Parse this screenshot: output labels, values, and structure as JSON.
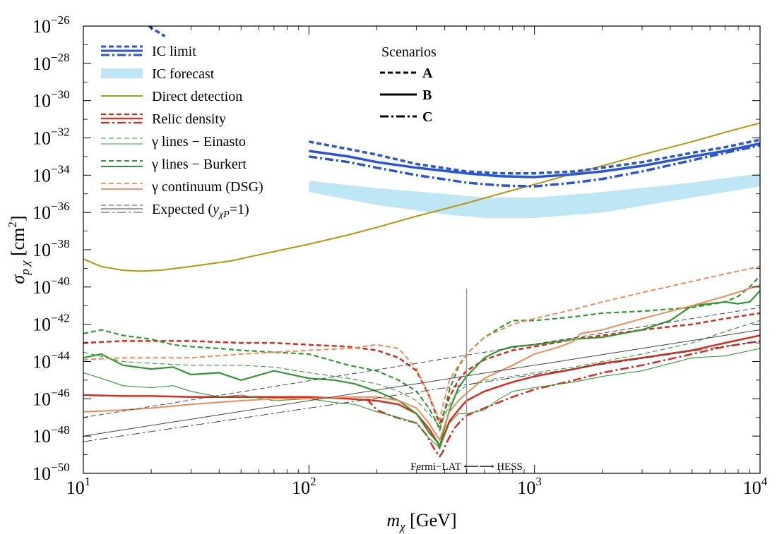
{
  "chart_data": {
    "type": "line",
    "xscale": "log",
    "yscale": "log",
    "xlim": [
      10,
      10000
    ],
    "ylim_exp": [
      -50,
      -26
    ],
    "xlabel": {
      "var": "m",
      "sub": "χ",
      "unit": "[GeV]"
    },
    "ylabel": {
      "var": "σ",
      "sub": "p χ",
      "unit": "[cm",
      "unit_sup": "2",
      "unit_close": "]"
    },
    "x_ticks": [
      {
        "value": 10,
        "base": "10",
        "exp": "1"
      },
      {
        "value": 100,
        "base": "10",
        "exp": "2"
      },
      {
        "value": 1000,
        "base": "10",
        "exp": "3"
      },
      {
        "value": 10000,
        "base": "10",
        "exp": "4"
      }
    ],
    "y_ticks": [
      {
        "exp_value": -26,
        "base": "10",
        "exp": "−26"
      },
      {
        "exp_value": -28,
        "base": "10",
        "exp": "−28"
      },
      {
        "exp_value": -30,
        "base": "10",
        "exp": "−30"
      },
      {
        "exp_value": -32,
        "base": "10",
        "exp": "−32"
      },
      {
        "exp_value": -34,
        "base": "10",
        "exp": "−34"
      },
      {
        "exp_value": -36,
        "base": "10",
        "exp": "−36"
      },
      {
        "exp_value": -38,
        "base": "10",
        "exp": "−38"
      },
      {
        "exp_value": -40,
        "base": "10",
        "exp": "−40"
      },
      {
        "exp_value": -42,
        "base": "10",
        "exp": "−42"
      },
      {
        "exp_value": -44,
        "base": "10",
        "exp": "−44"
      },
      {
        "exp_value": -46,
        "base": "10",
        "exp": "−46"
      },
      {
        "exp_value": -48,
        "base": "10",
        "exp": "−48"
      },
      {
        "exp_value": -50,
        "base": "10",
        "exp": "−50"
      }
    ],
    "annotation": {
      "text": "Fermi−LAT ⟵⟶ HESS",
      "x": 500
    },
    "colors": {
      "ic": "#2955d6",
      "ic_band": "#bfe6f5",
      "direct": "#b8960c",
      "relic": "#d92c1f",
      "green": "#2f9a31",
      "orange": "#f08a55",
      "gray": "#444444"
    },
    "legend": {
      "entries": [
        {
          "id": "ic-limit",
          "label": "IC limit"
        },
        {
          "id": "ic-forecast",
          "label": "IC forecast"
        },
        {
          "id": "direct",
          "label": "Direct detection"
        },
        {
          "id": "relic",
          "label": "Relic density"
        },
        {
          "id": "einasto",
          "label": "γ lines − Einasto"
        },
        {
          "id": "burkert",
          "label": "γ lines − Burkert"
        },
        {
          "id": "dsg",
          "label": "γ continuum (DSG)"
        },
        {
          "id": "expected",
          "label": "Expected (",
          "sub_var": "y",
          "sub_sub": "χP",
          "tail": "=1)"
        }
      ]
    },
    "scenarios": {
      "title": "Scenarios",
      "items": [
        {
          "label": "A",
          "style": "dashed"
        },
        {
          "label": "B",
          "style": "solid"
        },
        {
          "label": "C",
          "style": "dashdot"
        }
      ]
    },
    "ic_band": {
      "name": "IC forecast",
      "x": [
        100,
        200,
        400,
        600,
        1000,
        2000,
        5000,
        10000
      ],
      "upper": [
        -34.3,
        -34.7,
        -35.0,
        -35.2,
        -35.2,
        -34.9,
        -34.4,
        -33.9
      ],
      "lower": [
        -34.9,
        -35.6,
        -36.1,
        -36.3,
        -36.3,
        -36.0,
        -35.2,
        -34.6
      ]
    },
    "series": [
      {
        "name": "Direct detection",
        "color": "direct",
        "style": "solid",
        "width": 2,
        "x": [
          10,
          12,
          15,
          18,
          22,
          30,
          45,
          70,
          100,
          150,
          200,
          300,
          500,
          700,
          1000,
          1500,
          2000,
          3000,
          5000,
          7000,
          10000
        ],
        "y": [
          -38.5,
          -38.9,
          -39.1,
          -39.15,
          -39.1,
          -38.9,
          -38.6,
          -38.1,
          -37.7,
          -37.2,
          -36.8,
          -36.2,
          -35.5,
          -35.0,
          -34.5,
          -33.9,
          -33.5,
          -32.9,
          -32.2,
          -31.7,
          -31.2
        ]
      },
      {
        "name": "IC limit A",
        "color": "ic",
        "style": "dashed",
        "width": 3.5,
        "x": [
          100,
          150,
          200,
          300,
          500,
          700,
          1000,
          1500,
          2000,
          3000,
          5000,
          7000,
          10000
        ],
        "y": [
          -32.2,
          -32.6,
          -32.9,
          -33.4,
          -33.8,
          -33.9,
          -33.9,
          -33.8,
          -33.6,
          -33.3,
          -32.8,
          -32.5,
          -32.1
        ]
      },
      {
        "name": "IC limit B",
        "color": "ic",
        "style": "solid",
        "width": 3.5,
        "x": [
          100,
          150,
          200,
          300,
          500,
          700,
          1000,
          1500,
          2000,
          3000,
          5000,
          7000,
          10000
        ],
        "y": [
          -32.7,
          -33.0,
          -33.3,
          -33.6,
          -33.9,
          -34.05,
          -34.1,
          -33.95,
          -33.8,
          -33.5,
          -33.0,
          -32.7,
          -32.3
        ]
      },
      {
        "name": "IC limit C",
        "color": "ic",
        "style": "dashdot",
        "width": 3.5,
        "x": [
          100,
          150,
          200,
          300,
          500,
          700,
          1000,
          1500,
          2000,
          3000,
          5000,
          7000,
          10000
        ],
        "y": [
          -33.0,
          -33.3,
          -33.6,
          -34.0,
          -34.4,
          -34.55,
          -34.6,
          -34.4,
          -34.2,
          -33.8,
          -33.2,
          -32.8,
          -32.4
        ]
      },
      {
        "name": "IC limit low-mass",
        "color": "ic",
        "style": "dashed",
        "width": 3.5,
        "x": [
          19.5,
          23
        ],
        "y": [
          -26.0,
          -26.55
        ]
      },
      {
        "name": "Relic A",
        "color": "relic",
        "style": "dashed",
        "width": 2.5,
        "x": [
          10,
          15,
          20,
          30,
          50,
          70,
          100,
          150,
          200,
          250,
          300,
          340,
          370,
          380,
          390,
          420,
          460,
          500,
          600,
          800,
          1000,
          1500,
          2000,
          3000,
          5000,
          7000,
          10000
        ],
        "y": [
          -43.0,
          -42.9,
          -42.9,
          -42.9,
          -43.0,
          -43.0,
          -43.1,
          -43.2,
          -43.4,
          -43.8,
          -44.5,
          -45.8,
          -47.0,
          -47.3,
          -47.0,
          -45.9,
          -45.0,
          -44.5,
          -43.9,
          -43.4,
          -43.2,
          -42.8,
          -42.6,
          -42.3,
          -42.0,
          -41.7,
          -41.4
        ]
      },
      {
        "name": "Relic B",
        "color": "relic",
        "style": "solid",
        "width": 2.5,
        "x": [
          10,
          15,
          20,
          30,
          50,
          70,
          100,
          150,
          200,
          250,
          300,
          340,
          370,
          380,
          390,
          420,
          460,
          500,
          600,
          800,
          1000,
          1500,
          2000,
          3000,
          5000,
          7000,
          10000
        ],
        "y": [
          -45.8,
          -45.85,
          -45.85,
          -45.9,
          -45.9,
          -45.9,
          -45.9,
          -46.0,
          -46.1,
          -46.3,
          -46.8,
          -47.6,
          -48.3,
          -48.5,
          -48.2,
          -47.2,
          -46.6,
          -46.1,
          -45.6,
          -45.1,
          -44.8,
          -44.4,
          -44.1,
          -43.8,
          -43.4,
          -43.0,
          -42.6
        ]
      },
      {
        "name": "Relic C",
        "color": "relic",
        "style": "dashdot",
        "width": 2.5,
        "x": [
          180,
          200,
          230,
          260,
          300,
          330,
          360,
          375,
          380,
          390,
          410,
          440,
          470,
          500,
          600,
          800,
          1000,
          1500,
          2000,
          3000,
          5000,
          7000,
          10000
        ],
        "y": [
          -46.0,
          -46.6,
          -46.9,
          -47.1,
          -47.3,
          -47.9,
          -48.7,
          -49.0,
          -49.1,
          -48.9,
          -48.3,
          -47.6,
          -47.2,
          -46.9,
          -46.5,
          -45.9,
          -45.5,
          -45.0,
          -44.6,
          -44.2,
          -43.6,
          -43.2,
          -42.9
        ]
      },
      {
        "name": "Burkert A",
        "color": "green",
        "style": "dashed",
        "width": 2.2,
        "x": [
          10,
          12,
          15,
          20,
          25,
          30,
          40,
          50,
          70,
          100,
          150,
          200,
          250,
          300,
          340,
          370,
          380,
          390,
          420,
          460,
          500,
          600,
          700,
          800,
          1000,
          1500,
          2000,
          3000,
          5000,
          7000,
          8000,
          9000,
          10000
        ],
        "y": [
          -42.5,
          -42.3,
          -42.6,
          -42.8,
          -43.1,
          -43.2,
          -43.3,
          -43.4,
          -43.5,
          -43.6,
          -44.2,
          -44.5,
          -45.0,
          -45.6,
          -46.5,
          -47.3,
          -47.7,
          -47.2,
          -45.5,
          -44.3,
          -43.6,
          -42.7,
          -42.2,
          -41.8,
          -41.8,
          -41.6,
          -41.4,
          -41.3,
          -41.1,
          -40.8,
          -40.5,
          -40.0,
          -39.4
        ]
      },
      {
        "name": "Burkert B",
        "color": "green",
        "style": "solid",
        "width": 2.2,
        "x": [
          10,
          12,
          15,
          20,
          25,
          30,
          40,
          50,
          70,
          100,
          130,
          160,
          200,
          250,
          300,
          340,
          370,
          380,
          390,
          420,
          460,
          500,
          600,
          700,
          800,
          1000,
          1500,
          2000,
          3000,
          4000,
          5000,
          7000,
          8000,
          9000,
          10000
        ],
        "y": [
          -43.8,
          -43.6,
          -44.2,
          -44.4,
          -44.3,
          -44.7,
          -44.6,
          -45.0,
          -44.5,
          -44.9,
          -45.0,
          -45.2,
          -45.6,
          -46.1,
          -46.8,
          -47.8,
          -48.3,
          -48.6,
          -48.0,
          -46.6,
          -45.4,
          -44.8,
          -43.8,
          -43.4,
          -43.2,
          -43.1,
          -42.8,
          -42.7,
          -42.3,
          -41.8,
          -41.0,
          -40.8,
          -40.9,
          -40.8,
          -40.2
        ]
      },
      {
        "name": "Einasto B",
        "color": "green",
        "style": "solid",
        "width": 1.1,
        "x": [
          10,
          12,
          15,
          20,
          25,
          30,
          40,
          50,
          70,
          100,
          130,
          160,
          200,
          250,
          300,
          340,
          370,
          380,
          390,
          420,
          460,
          500,
          600,
          700,
          800,
          1000,
          1500,
          2000,
          3000,
          5000,
          7000,
          10000
        ],
        "y": [
          -44.6,
          -44.9,
          -45.3,
          -45.4,
          -45.3,
          -45.6,
          -45.9,
          -45.8,
          -46.1,
          -46.0,
          -46.2,
          -46.3,
          -46.7,
          -47.0,
          -47.3,
          -48.1,
          -48.5,
          -48.7,
          -48.3,
          -47.3,
          -46.8,
          -46.8,
          -46.6,
          -46.0,
          -45.6,
          -45.4,
          -45.1,
          -44.8,
          -44.5,
          -43.8,
          -43.7,
          -43.3
        ]
      },
      {
        "name": "Einasto A",
        "color": "green",
        "style": "dashed",
        "width": 1.1,
        "x": [
          10,
          15,
          20,
          30,
          50,
          70,
          100,
          150,
          200,
          250,
          300,
          340,
          370,
          380,
          390,
          420,
          460,
          500,
          600,
          800,
          1000,
          1500,
          2000,
          3000,
          5000,
          7000,
          10000
        ],
        "y": [
          -43.5,
          -44.0,
          -44.1,
          -44.2,
          -44.2,
          -44.3,
          -44.6,
          -44.9,
          -45.2,
          -45.6,
          -46.1,
          -46.8,
          -47.3,
          -47.5,
          -47.2,
          -46.3,
          -45.6,
          -45.3,
          -45.0,
          -44.8,
          -44.6,
          -44.3,
          -44.0,
          -43.6,
          -43.0,
          -42.4,
          -41.8
        ]
      },
      {
        "name": "DSG A",
        "color": "orange",
        "style": "dashed",
        "width": 2.0,
        "x": [
          10,
          15,
          20,
          30,
          50,
          70,
          100,
          150,
          200,
          250,
          300,
          340,
          370,
          380,
          390,
          420,
          460,
          500,
          600,
          800,
          1000,
          1500,
          2000,
          3000,
          5000,
          7000,
          10000
        ],
        "y": [
          -43.9,
          -43.8,
          -43.8,
          -43.8,
          -43.6,
          -43.5,
          -43.4,
          -43.3,
          -43.1,
          -43.3,
          -44.4,
          -45.8,
          -46.8,
          -47.1,
          -46.5,
          -45.0,
          -44.2,
          -43.6,
          -42.7,
          -42.0,
          -41.7,
          -41.2,
          -40.8,
          -40.3,
          -39.7,
          -39.3,
          -38.9
        ]
      },
      {
        "name": "DSG B",
        "color": "orange",
        "style": "solid",
        "width": 2.0,
        "x": [
          10,
          15,
          20,
          30,
          50,
          70,
          100,
          150,
          200,
          250,
          300,
          340,
          370,
          380,
          390,
          420,
          460,
          500,
          600,
          800,
          1000,
          1300,
          1500,
          1600,
          2000,
          3000,
          5000,
          7000,
          10000
        ],
        "y": [
          -46.7,
          -46.6,
          -46.5,
          -46.3,
          -46.1,
          -46.0,
          -46.0,
          -45.9,
          -45.9,
          -46.1,
          -46.5,
          -47.3,
          -48.0,
          -48.2,
          -47.8,
          -46.7,
          -46.1,
          -45.7,
          -44.9,
          -44.2,
          -43.6,
          -43.2,
          -42.9,
          -42.5,
          -42.3,
          -41.7,
          -41.0,
          -40.5,
          -39.9
        ]
      },
      {
        "name": "Expected solid",
        "color": "gray",
        "style": "solid",
        "width": 1.0,
        "x": [
          10,
          10000
        ],
        "y": [
          -48.0,
          -42.3
        ]
      },
      {
        "name": "Expected dashed",
        "color": "gray",
        "style": "dashed",
        "width": 1.0,
        "x": [
          10,
          10000
        ],
        "y": [
          -47.0,
          -41.1
        ]
      },
      {
        "name": "Expected dashdot",
        "color": "gray",
        "style": "dashdot",
        "width": 1.0,
        "x": [
          10,
          10000
        ],
        "y": [
          -48.3,
          -42.9
        ]
      }
    ]
  }
}
